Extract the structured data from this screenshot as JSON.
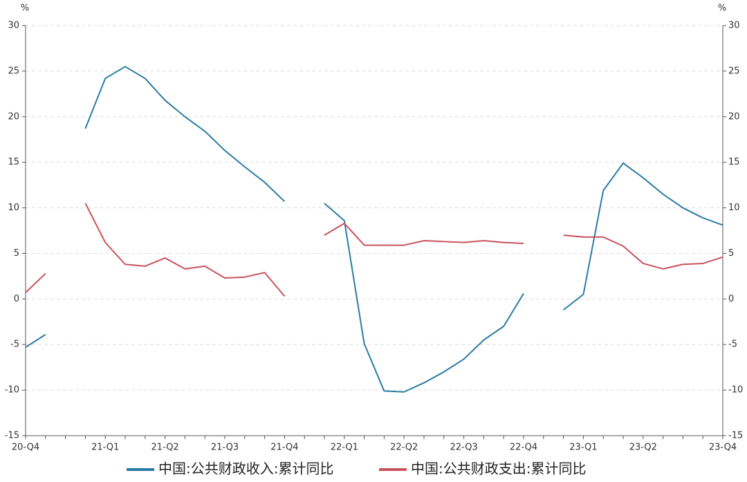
{
  "chart_data": {
    "type": "line",
    "y_unit": "%",
    "y2_unit": "%",
    "categories": [
      "20-Q4",
      null,
      null,
      null,
      "21-Q1",
      null,
      null,
      "21-Q2",
      null,
      null,
      "21-Q3",
      null,
      null,
      "21-Q4",
      null,
      null,
      "22-Q1",
      null,
      null,
      "22-Q2",
      null,
      null,
      "22-Q3",
      null,
      null,
      "22-Q4",
      null,
      null,
      "23-Q1",
      null,
      null,
      "23-Q2",
      null,
      null,
      null,
      "23-Q4"
    ],
    "series": [
      {
        "name": "中国:公共财政收入:累计同比",
        "color": "#2a7ba3",
        "values": [
          -5.3,
          -3.9,
          null,
          18.7,
          24.2,
          25.5,
          24.2,
          21.8,
          20.0,
          18.4,
          16.3,
          14.5,
          12.8,
          10.7,
          null,
          10.5,
          8.6,
          -4.9,
          -10.1,
          -10.2,
          -9.2,
          -8.0,
          -6.6,
          -4.5,
          -3.0,
          0.6,
          null,
          -1.2,
          0.5,
          11.9,
          14.9,
          13.3,
          11.5,
          10.0,
          8.9,
          8.1
        ]
      },
      {
        "name": "中国:公共财政支出:累计同比",
        "color": "#c9515b",
        "values": [
          0.7,
          2.8,
          null,
          10.5,
          6.2,
          3.8,
          3.6,
          4.5,
          3.3,
          3.6,
          2.3,
          2.4,
          2.9,
          0.3,
          null,
          7.0,
          8.3,
          5.9,
          5.9,
          5.9,
          6.4,
          6.3,
          6.2,
          6.4,
          6.2,
          6.1,
          null,
          7.0,
          6.8,
          6.8,
          5.8,
          3.9,
          3.3,
          3.8,
          3.9,
          4.6
        ]
      }
    ],
    "ylim": [
      -15,
      30
    ],
    "yticks": [
      -15,
      -10,
      -5,
      0,
      5,
      10,
      15,
      20,
      25,
      30
    ],
    "y2lim": [
      -15,
      30
    ],
    "y2ticks": [
      -15,
      -10,
      -5,
      0,
      5,
      10,
      15,
      20,
      25,
      30
    ],
    "grid": true,
    "legend": "bottom"
  }
}
